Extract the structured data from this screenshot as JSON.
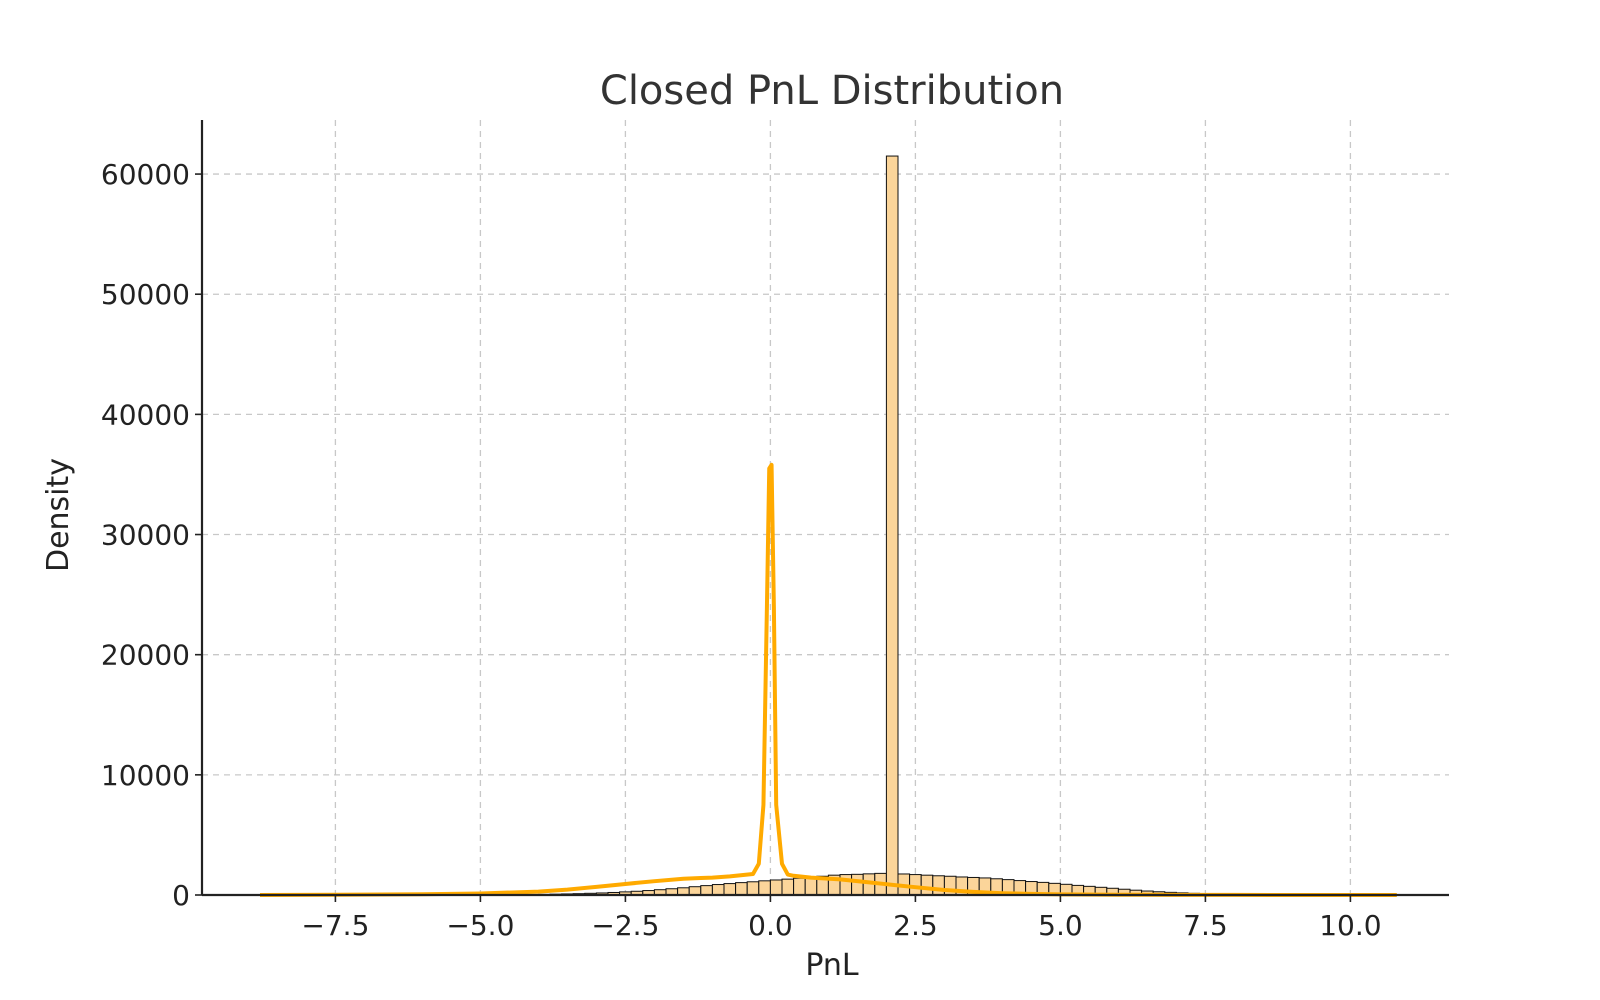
{
  "chart_data": {
    "type": "histogram",
    "title": "Closed PnL Distribution",
    "xlabel": "PnL",
    "ylabel": "Density",
    "xlim": [
      -9.8,
      11.7
    ],
    "ylim": [
      0,
      64500
    ],
    "x_ticks": [
      -7.5,
      -5.0,
      -2.5,
      0.0,
      2.5,
      5.0,
      7.5,
      10.0
    ],
    "x_tick_labels": [
      "−7.5",
      "−5.0",
      "−2.5",
      "0.0",
      "2.5",
      "5.0",
      "7.5",
      "10.0"
    ],
    "y_ticks": [
      0,
      10000,
      20000,
      30000,
      40000,
      50000,
      60000
    ],
    "y_tick_labels": [
      "0",
      "10000",
      "20000",
      "30000",
      "40000",
      "50000",
      "60000"
    ],
    "grid": true,
    "colors": {
      "bar_fill": "#fbd59a",
      "bar_edge": "#111111",
      "kde_line": "#ffaa00",
      "grid": "#c8c8c8"
    },
    "bins": {
      "start": -8.8,
      "width": 0.2,
      "values": [
        0,
        0,
        0,
        0,
        0,
        0,
        0,
        0,
        0,
        0,
        0,
        0,
        0,
        0,
        0,
        0,
        0,
        0,
        5,
        8,
        12,
        18,
        25,
        35,
        50,
        70,
        90,
        110,
        140,
        170,
        210,
        260,
        310,
        370,
        440,
        520,
        600,
        690,
        780,
        870,
        950,
        1030,
        1100,
        1180,
        1250,
        1320,
        1400,
        1480,
        1560,
        1650,
        1700,
        1720,
        1760,
        1800,
        61500,
        1750,
        1700,
        1650,
        1600,
        1560,
        1500,
        1460,
        1420,
        1350,
        1280,
        1200,
        1120,
        1050,
        970,
        890,
        800,
        720,
        640,
        560,
        480,
        400,
        330,
        270,
        220,
        180,
        140,
        110,
        85,
        65,
        50,
        38,
        28,
        20,
        14,
        10,
        7,
        5,
        3,
        2,
        1,
        0,
        0,
        0
      ]
    },
    "kde": {
      "x": [
        -8.8,
        -7.5,
        -6.0,
        -5.0,
        -4.0,
        -3.5,
        -3.0,
        -2.5,
        -2.0,
        -1.5,
        -1.2,
        -1.0,
        -0.7,
        -0.3,
        -0.2,
        -0.12,
        -0.06,
        -0.02,
        0.02,
        0.06,
        0.1,
        0.2,
        0.3,
        0.4,
        0.7,
        1.2,
        1.6,
        2.0,
        2.5,
        3.0,
        3.5,
        4.0,
        4.5,
        5.0,
        6.0,
        7.0,
        8.0,
        9.0,
        10.0,
        10.8
      ],
      "y": [
        0,
        20,
        60,
        130,
        280,
        450,
        680,
        920,
        1150,
        1350,
        1420,
        1450,
        1550,
        1750,
        2600,
        7500,
        24000,
        35500,
        35800,
        24000,
        7500,
        2600,
        1700,
        1600,
        1450,
        1300,
        1100,
        900,
        650,
        420,
        260,
        150,
        90,
        50,
        25,
        12,
        6,
        3,
        1,
        0
      ]
    }
  }
}
